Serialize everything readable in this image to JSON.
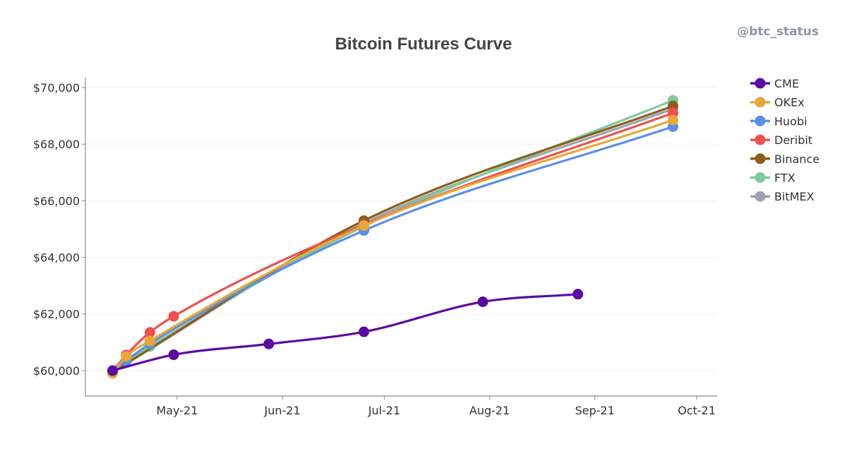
{
  "watermark": "@btc_status",
  "colors": {
    "CME": "#5b0aa3",
    "OKEx": "#e8a838",
    "Huobi": "#5b8fe8",
    "Deribit": "#ef5050",
    "Binance": "#8b5e1a",
    "FTX": "#7ccaa0",
    "BitMEX": "#9da3ad"
  },
  "chart_data": {
    "type": "line",
    "title": "Bitcoin Futures Curve",
    "xlabel": "",
    "ylabel": "",
    "x_ticks": [
      {
        "date": "2021-05-01",
        "label": "May-21"
      },
      {
        "date": "2021-06-01",
        "label": "Jun-21"
      },
      {
        "date": "2021-07-01",
        "label": "Jul-21"
      },
      {
        "date": "2021-08-01",
        "label": "Aug-21"
      },
      {
        "date": "2021-09-01",
        "label": "Sep-21"
      },
      {
        "date": "2021-10-01",
        "label": "Oct-21"
      }
    ],
    "y_ticks": [
      {
        "value": 60000,
        "label": "$60,000"
      },
      {
        "value": 62000,
        "label": "$62,000"
      },
      {
        "value": 64000,
        "label": "$64,000"
      },
      {
        "value": 66000,
        "label": "$66,000"
      },
      {
        "value": 68000,
        "label": "$68,000"
      },
      {
        "value": 70000,
        "label": "$70,000"
      }
    ],
    "xlim": [
      "2021-04-04",
      "2021-10-07"
    ],
    "ylim": [
      59100,
      70350
    ],
    "grid": "horizontal",
    "legend_position": "right",
    "series": [
      {
        "name": "CME",
        "points": [
          {
            "x": "2021-04-12",
            "y": 60000
          },
          {
            "x": "2021-04-30",
            "y": 60560
          },
          {
            "x": "2021-05-28",
            "y": 60940
          },
          {
            "x": "2021-06-25",
            "y": 61370
          },
          {
            "x": "2021-07-30",
            "y": 62430
          },
          {
            "x": "2021-08-27",
            "y": 62700
          }
        ]
      },
      {
        "name": "OKEx",
        "points": [
          {
            "x": "2021-04-12",
            "y": 59900
          },
          {
            "x": "2021-04-16",
            "y": 60500
          },
          {
            "x": "2021-04-23",
            "y": 61050
          },
          {
            "x": "2021-06-25",
            "y": 65120
          },
          {
            "x": "2021-09-24",
            "y": 68850
          }
        ]
      },
      {
        "name": "Huobi",
        "points": [
          {
            "x": "2021-04-12",
            "y": 59950
          },
          {
            "x": "2021-04-16",
            "y": 60350
          },
          {
            "x": "2021-04-23",
            "y": 60950
          },
          {
            "x": "2021-06-25",
            "y": 64950
          },
          {
            "x": "2021-09-24",
            "y": 68620
          }
        ]
      },
      {
        "name": "Deribit",
        "points": [
          {
            "x": "2021-04-12",
            "y": 59980
          },
          {
            "x": "2021-04-16",
            "y": 60550
          },
          {
            "x": "2021-04-23",
            "y": 61350
          },
          {
            "x": "2021-04-30",
            "y": 61920
          },
          {
            "x": "2021-06-25",
            "y": 65150
          },
          {
            "x": "2021-09-24",
            "y": 69100
          }
        ]
      },
      {
        "name": "Binance",
        "points": [
          {
            "x": "2021-04-12",
            "y": 59950
          },
          {
            "x": "2021-06-25",
            "y": 65300
          },
          {
            "x": "2021-09-24",
            "y": 69350
          }
        ]
      },
      {
        "name": "FTX",
        "points": [
          {
            "x": "2021-04-12",
            "y": 59970
          },
          {
            "x": "2021-04-16",
            "y": 60300
          },
          {
            "x": "2021-04-23",
            "y": 60850
          },
          {
            "x": "2021-06-25",
            "y": 65100
          },
          {
            "x": "2021-09-24",
            "y": 69550
          }
        ]
      },
      {
        "name": "BitMEX",
        "points": [
          {
            "x": "2021-04-12",
            "y": 59960
          },
          {
            "x": "2021-06-25",
            "y": 65200
          },
          {
            "x": "2021-09-24",
            "y": 69250
          }
        ]
      }
    ]
  }
}
